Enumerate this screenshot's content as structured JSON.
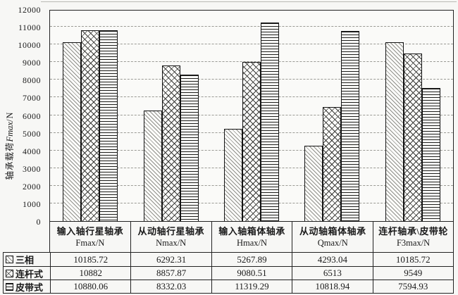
{
  "chart_data": {
    "type": "bar",
    "title": "",
    "ylabel_cn": "轴承载荷",
    "ylabel_italic": "Fmax",
    "ylabel_suffix": "/N",
    "ylim": [
      0,
      12000
    ],
    "y_tick_step": 1000,
    "grid": "horizontal-dashed",
    "legend_position": "table-left",
    "categories": [
      {
        "label": "输入轴行星轴承",
        "unit": "Fmax/N"
      },
      {
        "label": "从动轴行星轴承",
        "unit": "Nmax/N"
      },
      {
        "label": "输入轴箱体轴承",
        "unit": "Hmax/N"
      },
      {
        "label": "从动轴箱体轴承",
        "unit": "Qmax/N"
      },
      {
        "label": "连杆轴承\\皮带轮",
        "unit": "F3max/N"
      }
    ],
    "series": [
      {
        "name": "三相",
        "pattern": "light-diagonal-hatch",
        "values": [
          10185.72,
          6292.31,
          5267.89,
          4293.04,
          10185.72
        ]
      },
      {
        "name": "连杆式",
        "pattern": "diamond-crosshatch",
        "values": [
          10882,
          8857.87,
          9080.51,
          6513,
          9549
        ]
      },
      {
        "name": "皮带式",
        "pattern": "horizontal-lines",
        "values": [
          10880.06,
          8332.03,
          11319.29,
          10818.94,
          7594.93
        ]
      }
    ]
  },
  "colors": {
    "axis_line": "#222222",
    "gridline": "#9a9a94",
    "hatch_light": "#8f8f8a",
    "hatch_dark": "#3a3a38",
    "paper": "#f7f7f5"
  }
}
